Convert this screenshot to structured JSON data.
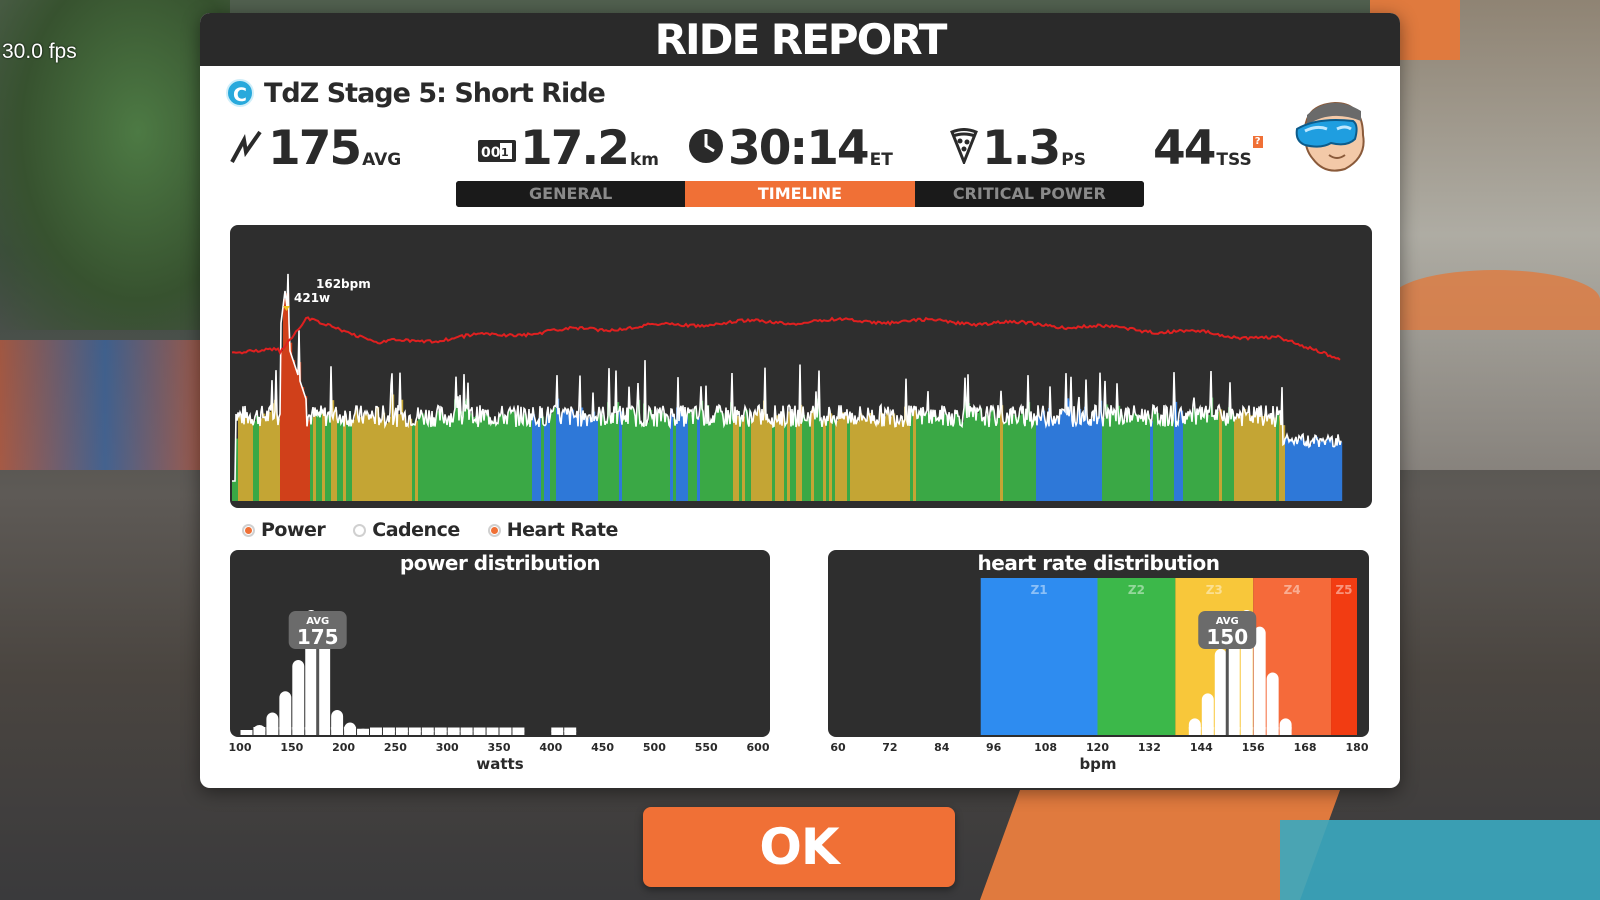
{
  "hud": {
    "fps": "30.0 fps"
  },
  "report": {
    "header": "RIDE REPORT",
    "ride_badge": "C",
    "ride_title": "TdZ Stage 5: Short Ride",
    "stats": {
      "power": {
        "value": "175",
        "unit": "AVG",
        "icon": "lightning-icon"
      },
      "distance": {
        "value": "17.2",
        "unit": "km",
        "icon": "odometer-icon"
      },
      "time": {
        "value": "30:14",
        "unit": "ET",
        "icon": "clock-icon"
      },
      "pizza": {
        "value": "1.3",
        "unit": "PS",
        "icon": "pizza-icon"
      },
      "tss": {
        "value": "44",
        "unit": "TSS",
        "badge": "?"
      }
    },
    "tabs": [
      {
        "label": "GENERAL",
        "active": false
      },
      {
        "label": "TIMELINE",
        "active": true
      },
      {
        "label": "CRITICAL POWER",
        "active": false
      }
    ],
    "timeline": {
      "peak_hr_label": "162bpm",
      "peak_power_label": "421w",
      "power_color": "#ffffff",
      "hr_color": "#e02020",
      "zone_colors": [
        "#2e78d8",
        "#3aa845",
        "#c4a534",
        "#d0401a"
      ]
    },
    "legend": [
      {
        "label": "Power",
        "checked": true
      },
      {
        "label": "Cadence",
        "checked": false
      },
      {
        "label": "Heart Rate",
        "checked": true
      }
    ],
    "power_distribution": {
      "title": "power distribution",
      "avg_label": "AVG",
      "avg_value": "175",
      "x_ticks": [
        "100",
        "150",
        "200",
        "250",
        "300",
        "350",
        "400",
        "450",
        "500",
        "550",
        "600"
      ],
      "x_label": "watts"
    },
    "hr_distribution": {
      "title": "heart rate distribution",
      "avg_label": "AVG",
      "avg_value": "150",
      "zones": [
        {
          "label": "Z1",
          "color": "#2e8cf0"
        },
        {
          "label": "Z2",
          "color": "#3cb84a"
        },
        {
          "label": "Z3",
          "color": "#f8c73a"
        },
        {
          "label": "Z4",
          "color": "#f56a3a"
        },
        {
          "label": "Z5",
          "color": "#f23c12"
        }
      ],
      "x_ticks": [
        "60",
        "72",
        "84",
        "96",
        "108",
        "120",
        "132",
        "144",
        "156",
        "168",
        "180"
      ],
      "x_label": "bpm"
    },
    "ok_label": "OK"
  },
  "chart_data": [
    {
      "type": "bar",
      "title": "power distribution",
      "xlabel": "watts",
      "xlim": [
        100,
        600
      ],
      "bin_width": 12.5,
      "bins": [
        100,
        112.5,
        125,
        137.5,
        150,
        162.5,
        175,
        187.5,
        200,
        212.5,
        225,
        237.5,
        250,
        262.5,
        275,
        287.5,
        300,
        312.5,
        325,
        337.5,
        350,
        362.5,
        375,
        387.5,
        400,
        412.5
      ],
      "values": [
        4,
        8,
        18,
        35,
        60,
        100,
        95,
        20,
        10,
        5,
        6,
        6,
        6,
        6,
        6,
        6,
        6,
        6,
        6,
        6,
        6,
        6,
        0,
        0,
        6,
        6
      ],
      "avg": 175
    },
    {
      "type": "bar",
      "title": "heart rate distribution",
      "xlabel": "bpm",
      "xlim": [
        60,
        180
      ],
      "bin_width": 3,
      "bins": [
        141,
        144,
        147,
        150,
        153,
        156,
        159,
        162
      ],
      "values": [
        12,
        30,
        62,
        82,
        90,
        78,
        45,
        12
      ],
      "avg": 150,
      "zones": [
        [
          93,
          120
        ],
        [
          120,
          138
        ],
        [
          138,
          156
        ],
        [
          156,
          174
        ],
        [
          174,
          180
        ]
      ]
    }
  ]
}
